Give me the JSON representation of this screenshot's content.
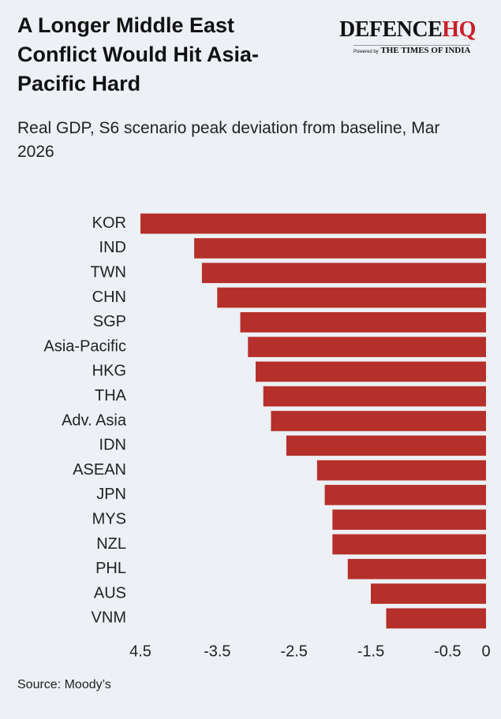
{
  "logo": {
    "name": "DEFENCE",
    "highlight": "HQ",
    "powered": "Powered by",
    "brand": "THE TIMES OF INDIA"
  },
  "chart_data": {
    "type": "barh",
    "title": "A Longer Middle East Conflict Would Hit Asia-Pacific Hard",
    "subtitle": "Real GDP, S6 scenario peak deviation from baseline, Mar 2026",
    "source": "Source: Moody’s",
    "categories": [
      "KOR",
      "IND",
      "TWN",
      "CHN",
      "SGP",
      "Asia-Pacific",
      "HKG",
      "THA",
      "Adv. Asia",
      "IDN",
      "ASEAN",
      "JPN",
      "MYS",
      "NZL",
      "PHL",
      "AUS",
      "VNM"
    ],
    "values": [
      -4.5,
      -3.8,
      -3.7,
      -3.5,
      -3.2,
      -3.1,
      -3.0,
      -2.9,
      -2.8,
      -2.6,
      -2.2,
      -2.1,
      -2.0,
      -2.0,
      -1.8,
      -1.5,
      -1.3
    ],
    "color": "#b5302b",
    "xlim": [
      -4.5,
      0
    ],
    "xticks": [
      {
        "value": -4.5,
        "label": "4.5"
      },
      -3.5,
      -2.5,
      -1.5,
      -0.5,
      0
    ],
    "grid": false
  }
}
